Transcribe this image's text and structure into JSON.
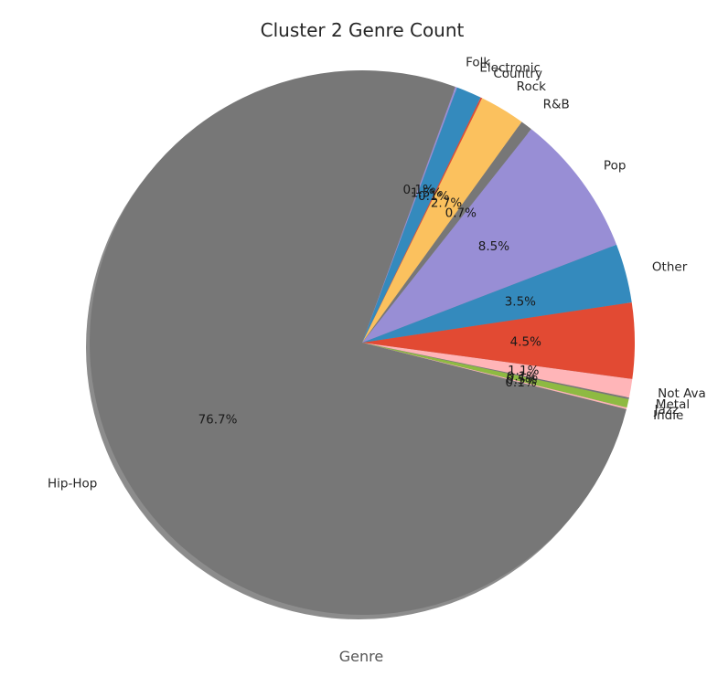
{
  "chart_data": {
    "type": "pie",
    "title": "Cluster 2 Genre Count",
    "xlabel": "Genre",
    "shadow": true,
    "slices": [
      {
        "label": "Hip-Hop",
        "value": 76.7,
        "pct_label": "76.7%",
        "color": "#777777"
      },
      {
        "label": "Indie",
        "value": 0.1,
        "pct_label": "0.1%",
        "color": "#FFB5B8"
      },
      {
        "label": "Jazz",
        "value": 0.5,
        "pct_label": "0.5%",
        "color": "#8EBA42"
      },
      {
        "label": "Metal",
        "value": 0.1,
        "pct_label": "0.1%",
        "color": "#777777"
      },
      {
        "label": "Not Available",
        "value": 1.1,
        "pct_label": "1.1%",
        "color": "#FFB5B8"
      },
      {
        "label": "",
        "value": 4.5,
        "pct_label": "4.5%",
        "color": "#E24A33"
      },
      {
        "label": "Other",
        "value": 3.5,
        "pct_label": "3.5%",
        "color": "#348ABD"
      },
      {
        "label": "Pop",
        "value": 8.5,
        "pct_label": "8.5%",
        "color": "#988ED5"
      },
      {
        "label": "R&B",
        "value": 0.7,
        "pct_label": "0.7%",
        "color": "#777777"
      },
      {
        "label": "Rock",
        "value": 2.7,
        "pct_label": "2.7%",
        "color": "#FBC15E"
      },
      {
        "label": "Country",
        "value": 0.1,
        "pct_label": "0.1%",
        "color": "#E24A33"
      },
      {
        "label": "Electronic",
        "value": 1.5,
        "pct_label": "1.5%",
        "color": "#348ABD"
      },
      {
        "label": "Folk",
        "value": 0.1,
        "pct_label": "0.1%",
        "color": "#988ED5"
      }
    ]
  }
}
